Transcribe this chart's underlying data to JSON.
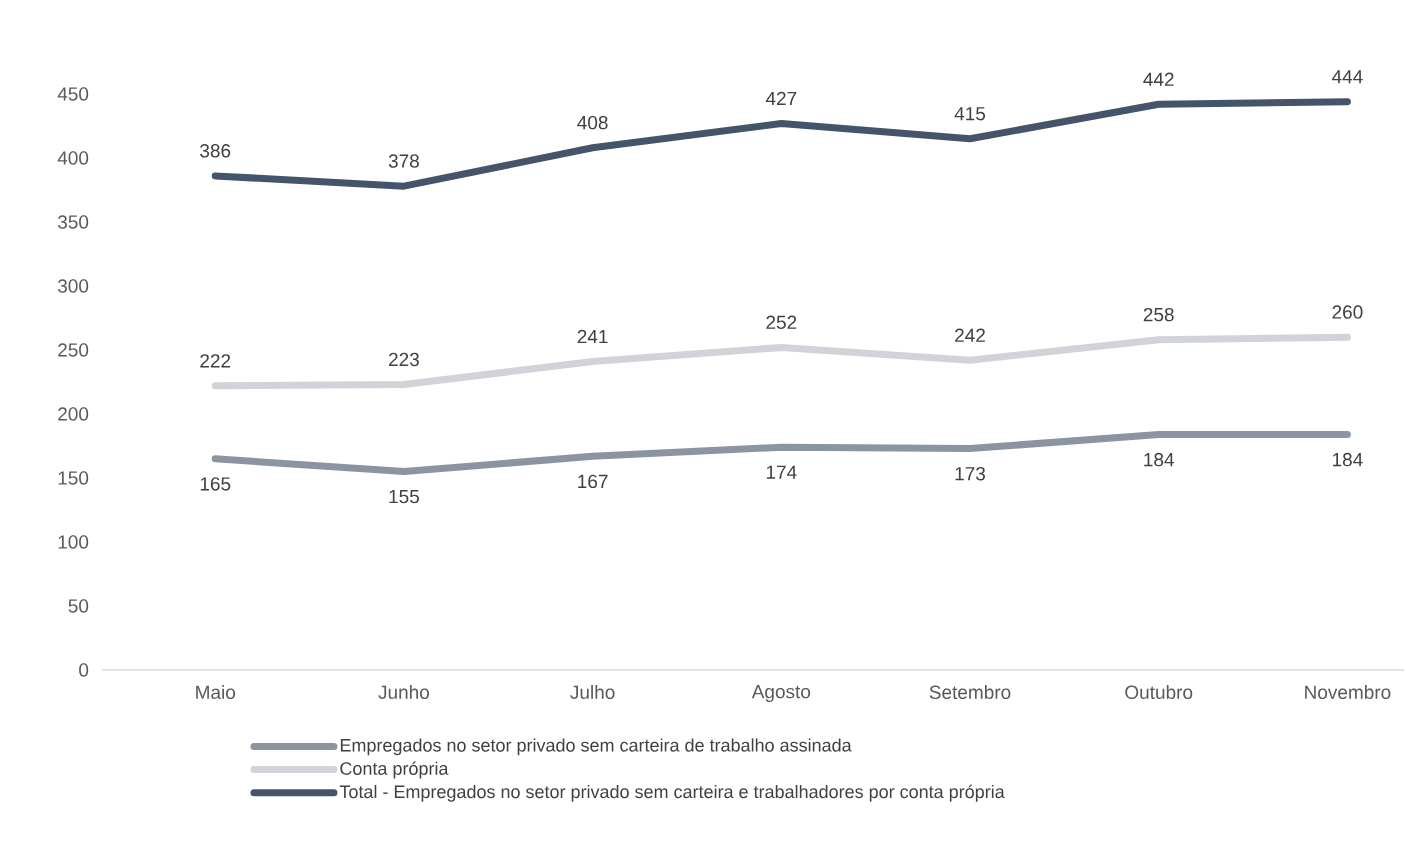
{
  "chart_data": {
    "type": "line",
    "categories": [
      "Maio",
      "Junho",
      "Julho",
      "Agosto",
      "Setembro",
      "Outubro",
      "Novembro"
    ],
    "series": [
      {
        "name": "Empregados no setor privado sem carteira de trabalho assinada",
        "color": "#8b95a2",
        "values": [
          165,
          155,
          167,
          174,
          173,
          184,
          184
        ]
      },
      {
        "name": "Conta própria",
        "color": "#d0d3d8",
        "values": [
          222,
          223,
          241,
          252,
          242,
          258,
          260
        ]
      },
      {
        "name": "Total - Empregados no setor privado sem carteira e trabalhadores por conta própria",
        "color": "#44546a",
        "values": [
          386,
          378,
          408,
          427,
          415,
          442,
          444
        ]
      }
    ],
    "ylim": [
      0,
      450
    ],
    "yticks": [
      0,
      50,
      100,
      150,
      200,
      250,
      300,
      350,
      400,
      450
    ],
    "data_labels": true,
    "legend": "bottom",
    "line_style": "solid"
  }
}
